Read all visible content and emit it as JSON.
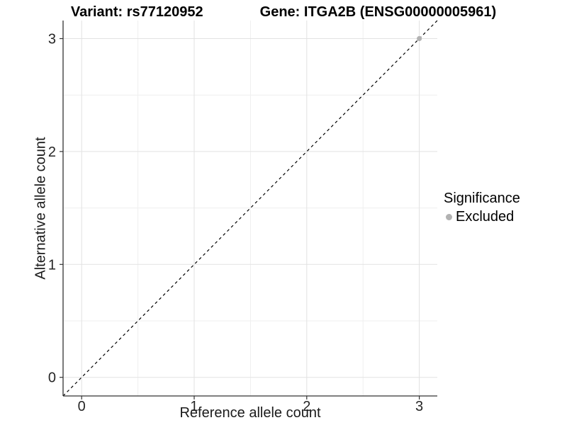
{
  "titles": {
    "variant": "Variant: rs77120952",
    "gene": "Gene: ITGA2B (ENSG00000005961)"
  },
  "axis": {
    "x_label": "Reference allele count",
    "y_label": "Alternative allele count"
  },
  "legend": {
    "title": "Significance",
    "items": [
      {
        "label": "Excluded",
        "color": "#b2b2b2"
      }
    ]
  },
  "chart_data": {
    "type": "scatter",
    "title": "Variant: rs77120952 | Gene: ITGA2B (ENSG00000005961)",
    "xlabel": "Reference allele count",
    "ylabel": "Alternative allele count",
    "xlim": [
      -0.165,
      3.16
    ],
    "ylim": [
      -0.165,
      3.16
    ],
    "x_ticks": [
      0,
      1,
      2,
      3
    ],
    "y_ticks": [
      0,
      1,
      2,
      3
    ],
    "x_minor_ticks": [
      0.5,
      1.5,
      2.5
    ],
    "y_minor_ticks": [
      0.5,
      1.5,
      2.5
    ],
    "grid": true,
    "legend_position": "right",
    "series": [
      {
        "name": "Excluded",
        "color": "#b2b2b2",
        "points": [
          {
            "x": 3,
            "y": 3
          }
        ]
      }
    ],
    "reference_line": {
      "type": "identity",
      "slope": 1,
      "intercept": 0,
      "style": "dashed",
      "color": "#000000"
    },
    "colors": {
      "axis_line": "#333333",
      "tick_text": "#262626",
      "grid_major": "#e2e2e2",
      "grid_minor": "#efefef",
      "background": "#ffffff"
    }
  }
}
